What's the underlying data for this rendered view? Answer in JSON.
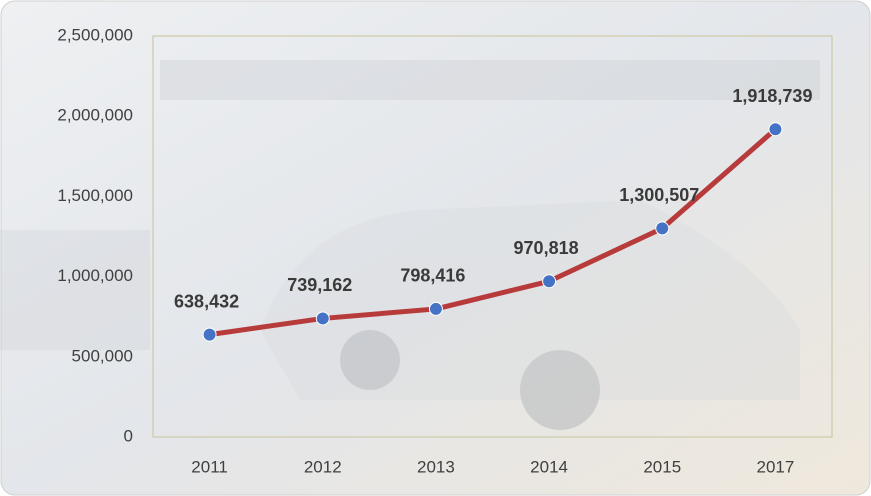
{
  "chart_data": {
    "type": "line",
    "categories": [
      "2011",
      "2012",
      "2013",
      "2014",
      "2015",
      "2017"
    ],
    "series": [
      {
        "color": "#b83b3b",
        "marker_color": "#4472c4",
        "values": [
          638432,
          739162,
          798416,
          970818,
          1300507,
          1918739
        ],
        "value_labels": [
          "638,432",
          "739,162",
          "798,416",
          "970,818",
          "1,300,507",
          "1,918,739"
        ]
      }
    ],
    "ylim": [
      0,
      2500000
    ],
    "yticks": [
      0,
      {
        "value": 500000,
        "label": "500,000"
      },
      {
        "value": 1000000,
        "label": "1,000,000"
      },
      {
        "value": 1500000,
        "label": "1,500,000"
      },
      {
        "value": 2000000,
        "label": "2,000,000"
      },
      {
        "value": 2500000,
        "label": "2,500,000"
      }
    ]
  }
}
